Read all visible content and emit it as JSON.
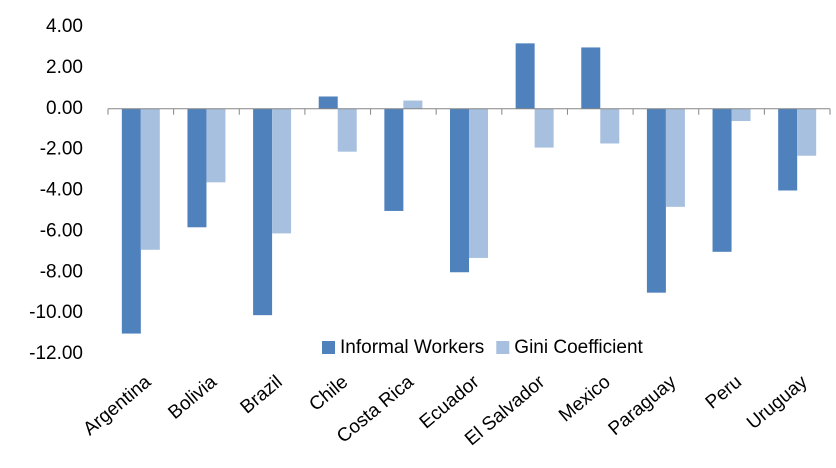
{
  "chart_data": {
    "type": "bar",
    "categories": [
      "Argentina",
      "Bolivia",
      "Brazil",
      "Chile",
      "Costa Rica",
      "Ecuador",
      "El Salvador",
      "Mexico",
      "Paraguay",
      "Peru",
      "Uruguay"
    ],
    "series": [
      {
        "name": "Informal Workers",
        "color": "#4f81bd",
        "values": [
          -11,
          -5.8,
          -10.1,
          0.6,
          -5,
          -8,
          3.2,
          3,
          -9,
          -7,
          -4
        ]
      },
      {
        "name": "Gini Coefficient",
        "color": "#a7c0df",
        "values": [
          -6.9,
          -3.6,
          -6.1,
          -2.1,
          0.4,
          -7.3,
          -1.9,
          -1.7,
          -4.8,
          -0.6,
          -2.3
        ]
      }
    ],
    "ylim": [
      -12,
      4
    ],
    "yticks": [
      {
        "value": -12,
        "label": "-12.00"
      },
      {
        "value": -10,
        "label": "-10.00"
      },
      {
        "value": -8,
        "label": "-8.00"
      },
      {
        "value": -6,
        "label": "-6.00"
      },
      {
        "value": -4,
        "label": "-4.00"
      },
      {
        "value": -2,
        "label": "-2.00"
      },
      {
        "value": 0,
        "label": "0.00"
      },
      {
        "value": 2,
        "label": "2.00"
      },
      {
        "value": 4,
        "label": "4.00"
      }
    ],
    "grid": false
  }
}
